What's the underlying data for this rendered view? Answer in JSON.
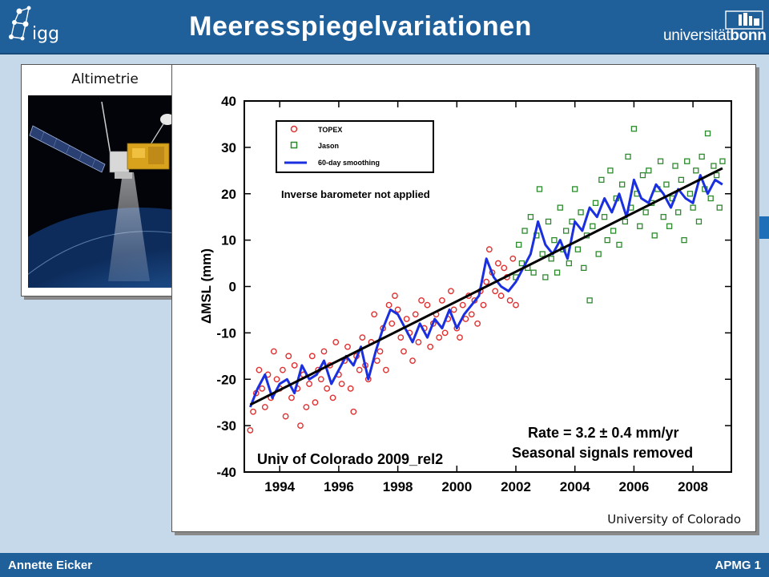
{
  "header": {
    "title": "Meeresspiegelvariationen",
    "logo_left": "igg",
    "logo_right_light": "universität",
    "logo_right_bold": "bonn"
  },
  "footer": {
    "author": "Annette Eicker",
    "course": "APMG 1"
  },
  "satellite_panel": {
    "label": "Altimetrie",
    "image": "altimetry-satellite-illustration"
  },
  "chart_panel": {
    "credit": "University of Colorado"
  },
  "colors": {
    "header": "#1f5f9a",
    "background": "#c5d9eb",
    "topex": "#e03030",
    "jason": "#2c8a2c",
    "smoothing": "#1a2fe0",
    "trend": "#000000"
  },
  "chart_data": {
    "type": "scatter",
    "xlim": [
      1992.8,
      2009.3
    ],
    "ylim": [
      -40,
      40
    ],
    "xticks": [
      "1994",
      "1996",
      "1998",
      "2000",
      "2002",
      "2004",
      "2006",
      "2008"
    ],
    "yticks": [
      "40",
      "30",
      "20",
      "10",
      "0",
      "-10",
      "-20",
      "-30",
      "-40"
    ],
    "ylabel": "ΔMSL  (mm)",
    "legend": [
      "TOPEX",
      "Jason",
      "60-day smoothing"
    ],
    "legend_position": "top-left",
    "annotations": [
      "Inverse barometer not applied",
      "Rate = 3.2 ± 0.4 mm/yr",
      "Seasonal signals removed",
      "Univ of Colorado 2009_rel2"
    ],
    "trend": {
      "slope_mm_per_yr": 3.2,
      "start": [
        1993.0,
        -25.5
      ],
      "end": [
        2009.0,
        25.5
      ]
    },
    "series": [
      {
        "name": "60-day smoothing",
        "x": [
          1993.0,
          1993.25,
          1993.5,
          1993.75,
          1994.0,
          1994.25,
          1994.5,
          1994.75,
          1995.0,
          1995.25,
          1995.5,
          1995.75,
          1996.0,
          1996.25,
          1996.5,
          1996.75,
          1997.0,
          1997.25,
          1997.5,
          1997.75,
          1998.0,
          1998.25,
          1998.5,
          1998.75,
          1999.0,
          1999.25,
          1999.5,
          1999.75,
          2000.0,
          2000.25,
          2000.5,
          2000.75,
          2001.0,
          2001.25,
          2001.5,
          2001.75,
          2002.0,
          2002.25,
          2002.5,
          2002.75,
          2003.0,
          2003.25,
          2003.5,
          2003.75,
          2004.0,
          2004.25,
          2004.5,
          2004.75,
          2005.0,
          2005.25,
          2005.5,
          2005.75,
          2006.0,
          2006.25,
          2006.5,
          2006.75,
          2007.0,
          2007.25,
          2007.5,
          2007.75,
          2008.0,
          2008.25,
          2008.5,
          2008.75,
          2009.0
        ],
        "values": [
          -26,
          -22,
          -19,
          -24,
          -21,
          -20,
          -23,
          -17,
          -20,
          -19,
          -16,
          -21,
          -18,
          -15,
          -17,
          -13,
          -20,
          -14,
          -9,
          -5,
          -6,
          -9,
          -12,
          -8,
          -11,
          -7,
          -9,
          -5,
          -9,
          -6,
          -4,
          -2,
          6,
          2,
          0,
          -1,
          1,
          4,
          7,
          14,
          9,
          7,
          10,
          6,
          14,
          12,
          17,
          15,
          19,
          16,
          20,
          15,
          23,
          19,
          18,
          22,
          20,
          17,
          21,
          19,
          18,
          24,
          20,
          23,
          22
        ]
      },
      {
        "name": "TOPEX",
        "x": [
          1993.0,
          1993.1,
          1993.2,
          1993.3,
          1993.4,
          1993.5,
          1993.6,
          1993.7,
          1993.8,
          1993.9,
          1994.0,
          1994.1,
          1994.2,
          1994.3,
          1994.4,
          1994.5,
          1994.6,
          1994.7,
          1994.8,
          1994.9,
          1995.0,
          1995.1,
          1995.2,
          1995.3,
          1995.4,
          1995.5,
          1995.6,
          1995.7,
          1995.8,
          1995.9,
          1996.0,
          1996.1,
          1996.2,
          1996.3,
          1996.4,
          1996.5,
          1996.6,
          1996.7,
          1996.8,
          1996.9,
          1997.0,
          1997.1,
          1997.2,
          1997.3,
          1997.4,
          1997.5,
          1997.6,
          1997.7,
          1997.8,
          1997.9,
          1998.0,
          1998.1,
          1998.2,
          1998.3,
          1998.4,
          1998.5,
          1998.6,
          1998.7,
          1998.8,
          1998.9,
          1999.0,
          1999.1,
          1999.2,
          1999.3,
          1999.4,
          1999.5,
          1999.6,
          1999.7,
          1999.8,
          1999.9,
          2000.0,
          2000.1,
          2000.2,
          2000.3,
          2000.4,
          2000.5,
          2000.6,
          2000.7,
          2000.8,
          2000.9,
          2001.0,
          2001.1,
          2001.2,
          2001.3,
          2001.4,
          2001.5,
          2001.6,
          2001.7,
          2001.8,
          2001.9,
          2002.0
        ],
        "values": [
          -31,
          -27,
          -23,
          -18,
          -22,
          -26,
          -19,
          -24,
          -14,
          -20,
          -22,
          -18,
          -28,
          -15,
          -24,
          -17,
          -22,
          -30,
          -19,
          -26,
          -21,
          -15,
          -25,
          -18,
          -20,
          -14,
          -22,
          -17,
          -24,
          -12,
          -19,
          -21,
          -16,
          -13,
          -22,
          -27,
          -15,
          -18,
          -11,
          -17,
          -20,
          -12,
          -6,
          -16,
          -14,
          -9,
          -18,
          -4,
          -8,
          -2,
          -5,
          -11,
          -14,
          -7,
          -10,
          -16,
          -6,
          -12,
          -3,
          -9,
          -4,
          -13,
          -8,
          -6,
          -11,
          -3,
          -10,
          -7,
          -1,
          -5,
          -9,
          -11,
          -4,
          -7,
          -2,
          -6,
          -3,
          -8,
          -1,
          -4,
          1,
          8,
          3,
          -1,
          5,
          -2,
          4,
          2,
          -3,
          6,
          -4
        ]
      },
      {
        "name": "Jason",
        "x": [
          2002.0,
          2002.1,
          2002.2,
          2002.3,
          2002.4,
          2002.5,
          2002.6,
          2002.7,
          2002.8,
          2002.9,
          2003.0,
          2003.1,
          2003.2,
          2003.3,
          2003.4,
          2003.5,
          2003.6,
          2003.7,
          2003.8,
          2003.9,
          2004.0,
          2004.1,
          2004.2,
          2004.3,
          2004.4,
          2004.5,
          2004.6,
          2004.7,
          2004.8,
          2004.9,
          2005.0,
          2005.1,
          2005.2,
          2005.3,
          2005.4,
          2005.5,
          2005.6,
          2005.7,
          2005.8,
          2005.9,
          2006.0,
          2006.1,
          2006.2,
          2006.3,
          2006.4,
          2006.5,
          2006.6,
          2006.7,
          2006.8,
          2006.9,
          2007.0,
          2007.1,
          2007.2,
          2007.3,
          2007.4,
          2007.5,
          2007.6,
          2007.7,
          2007.8,
          2007.9,
          2008.0,
          2008.1,
          2008.2,
          2008.3,
          2008.4,
          2008.5,
          2008.6,
          2008.7,
          2008.8,
          2008.9,
          2009.0
        ],
        "values": [
          2,
          9,
          5,
          12,
          4,
          15,
          3,
          11,
          21,
          7,
          2,
          14,
          6,
          10,
          3,
          17,
          8,
          12,
          5,
          14,
          21,
          8,
          16,
          4,
          11,
          -3,
          13,
          18,
          7,
          23,
          15,
          10,
          25,
          12,
          19,
          9,
          22,
          14,
          28,
          17,
          34,
          20,
          13,
          24,
          16,
          25,
          18,
          11,
          21,
          27,
          15,
          22,
          13,
          19,
          26,
          16,
          23,
          10,
          27,
          20,
          17,
          25,
          14,
          28,
          21,
          33,
          19,
          26,
          24,
          17,
          27
        ]
      }
    ]
  }
}
